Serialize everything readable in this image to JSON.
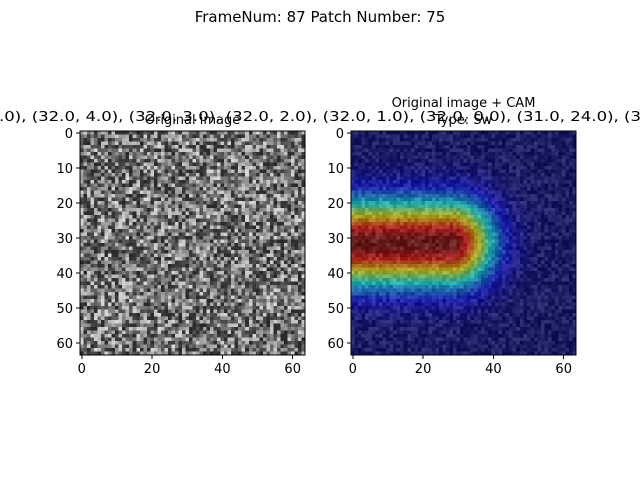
{
  "figure_title": "FrameNum: 87   Patch Number: 75",
  "overlay_text": ".0), (32.0, 4.0), (32.0, 3.0), (32.0, 2.0), (32.0, 1.0), (32.0, 0.0), (31.0, 24.0), (3",
  "chart_data": [
    {
      "type": "image",
      "title": "Original image",
      "colormap": "gray",
      "xlim": [
        -0.5,
        63.5
      ],
      "ylim": [
        63.5,
        -0.5
      ],
      "xticks": [
        0,
        20,
        40,
        60
      ],
      "yticks": [
        0,
        10,
        20,
        30,
        40,
        50,
        60
      ]
    },
    {
      "type": "image",
      "title": "Original image + CAM\nType: Sw",
      "colormap": "jet",
      "xlim": [
        -0.5,
        63.5
      ],
      "ylim": [
        63.5,
        -0.5
      ],
      "xticks": [
        0,
        20,
        40,
        60
      ],
      "yticks": [
        0,
        10,
        20,
        30,
        40,
        50,
        60
      ]
    }
  ]
}
